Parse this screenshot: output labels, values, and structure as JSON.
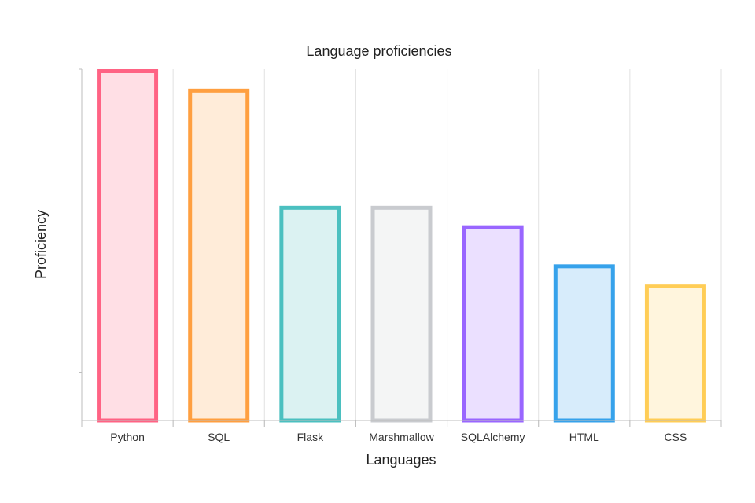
{
  "chart_data": {
    "type": "bar",
    "title": "Language proficiencies",
    "xlabel": "Languages",
    "ylabel": "Proficiency",
    "categories": [
      "Python",
      "SQL",
      "Flask",
      "Marshmallow",
      "SQLAlchemy",
      "HTML",
      "CSS"
    ],
    "values": [
      9,
      8.5,
      5.5,
      5.5,
      5,
      4,
      3.5
    ],
    "ylim": [
      0,
      9
    ],
    "grid": true,
    "legend": "none",
    "colors": {
      "borders": [
        "#ff6384",
        "#ff9f40",
        "#4bc0c0",
        "#c9cbcf",
        "#9966ff",
        "#36a2eb",
        "#ffcd56"
      ],
      "fills": [
        "#ffdfe5",
        "#ffecd9",
        "#dbf2f2",
        "#f4f5f5",
        "#ebe0ff",
        "#d7ecfb",
        "#fff5dd"
      ]
    }
  }
}
